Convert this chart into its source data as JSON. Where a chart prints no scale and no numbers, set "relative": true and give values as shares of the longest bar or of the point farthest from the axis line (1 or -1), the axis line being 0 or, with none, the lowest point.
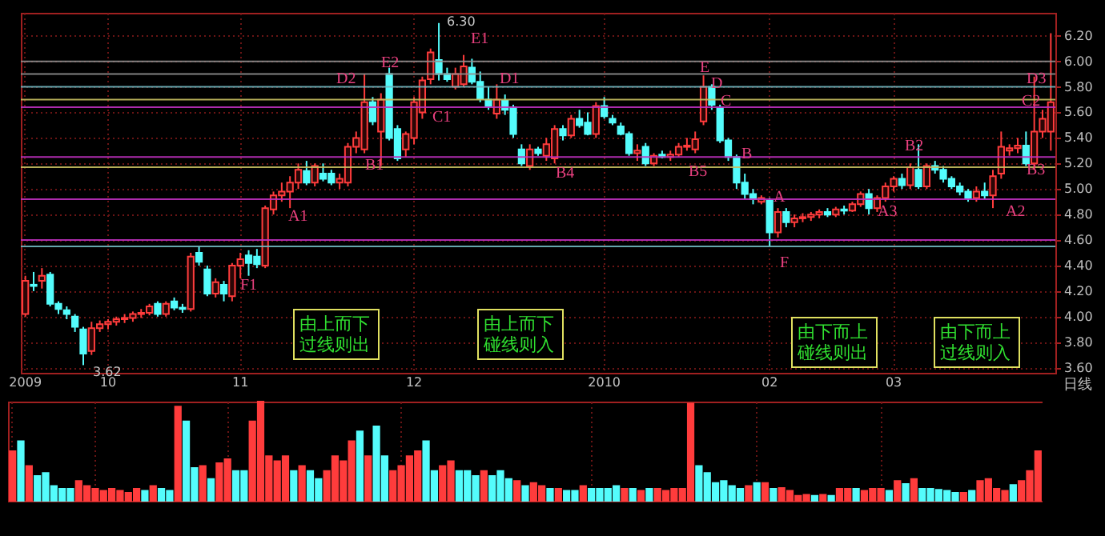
{
  "chart_data": [
    {
      "type": "candlestick",
      "categories": [
        "2009",
        null,
        null,
        null,
        null,
        null,
        null,
        null,
        null,
        null,
        "10",
        null,
        null,
        null,
        null,
        null,
        null,
        null,
        null,
        null,
        null,
        null,
        null,
        null,
        null,
        null,
        "11",
        null,
        null,
        null,
        null,
        null,
        null,
        null,
        null,
        null,
        null,
        null,
        null,
        null,
        null,
        null,
        null,
        null,
        null,
        null,
        null,
        "12",
        null,
        null,
        null,
        null,
        null,
        null,
        null,
        null,
        null,
        null,
        null,
        null,
        null,
        null,
        null,
        null,
        null,
        null,
        null,
        null,
        null,
        null,
        "2010",
        null,
        null,
        null,
        null,
        null,
        null,
        null,
        null,
        null,
        null,
        null,
        null,
        null,
        null,
        null,
        null,
        null,
        null,
        null,
        "02",
        null,
        null,
        null,
        null,
        null,
        null,
        null,
        null,
        null,
        null,
        null,
        null,
        null,
        null,
        "03",
        null,
        null,
        null,
        null,
        null,
        null,
        null,
        null,
        null,
        null,
        null,
        null,
        null,
        null,
        null,
        null,
        null,
        null,
        null
      ],
      "ohlc": [
        [
          4.02,
          4.32,
          4.0,
          4.28
        ],
        [
          4.25,
          4.35,
          4.2,
          4.24
        ],
        [
          4.28,
          4.38,
          4.22,
          4.32
        ],
        [
          4.33,
          4.35,
          4.08,
          4.1
        ],
        [
          4.1,
          4.12,
          4.02,
          4.06
        ],
        [
          4.05,
          4.08,
          3.98,
          4.02
        ],
        [
          4.0,
          4.02,
          3.88,
          3.92
        ],
        [
          3.9,
          3.92,
          3.62,
          3.71
        ],
        [
          3.73,
          3.96,
          3.7,
          3.91
        ],
        [
          3.91,
          3.97,
          3.88,
          3.94
        ],
        [
          3.94,
          3.98,
          3.9,
          3.96
        ],
        [
          3.96,
          4.0,
          3.93,
          3.98
        ],
        [
          3.98,
          4.02,
          3.95,
          3.99
        ],
        [
          3.99,
          4.04,
          3.96,
          4.02
        ],
        [
          4.02,
          4.06,
          3.99,
          4.03
        ],
        [
          4.03,
          4.1,
          4.01,
          4.08
        ],
        [
          4.1,
          4.12,
          4.0,
          4.02
        ],
        [
          4.02,
          4.12,
          4.0,
          4.1
        ],
        [
          4.12,
          4.15,
          4.05,
          4.07
        ],
        [
          4.07,
          4.1,
          4.03,
          4.06
        ],
        [
          4.06,
          4.5,
          4.04,
          4.47
        ],
        [
          4.5,
          4.55,
          4.4,
          4.43
        ],
        [
          4.37,
          4.4,
          4.16,
          4.18
        ],
        [
          4.18,
          4.3,
          4.15,
          4.27
        ],
        [
          4.25,
          4.28,
          4.12,
          4.18
        ],
        [
          4.16,
          4.42,
          4.12,
          4.4
        ],
        [
          4.4,
          4.5,
          4.3,
          4.45
        ],
        [
          4.48,
          4.52,
          4.32,
          4.42
        ],
        [
          4.47,
          4.53,
          4.38,
          4.41
        ],
        [
          4.4,
          4.87,
          4.38,
          4.85
        ],
        [
          4.84,
          4.98,
          4.8,
          4.95
        ],
        [
          4.95,
          5.05,
          4.9,
          4.98
        ],
        [
          4.98,
          5.1,
          4.85,
          5.05
        ],
        [
          5.05,
          5.2,
          5.0,
          5.15
        ],
        [
          5.14,
          5.22,
          5.03,
          5.05
        ],
        [
          5.05,
          5.2,
          5.02,
          5.18
        ],
        [
          5.12,
          5.2,
          5.06,
          5.08
        ],
        [
          5.12,
          5.15,
          5.03,
          5.05
        ],
        [
          5.05,
          5.12,
          5.0,
          5.08
        ],
        [
          5.05,
          5.36,
          5.02,
          5.33
        ],
        [
          5.33,
          5.45,
          5.28,
          5.4
        ],
        [
          5.31,
          5.9,
          5.28,
          5.68
        ],
        [
          5.68,
          5.72,
          5.5,
          5.53
        ],
        [
          5.45,
          5.75,
          5.18,
          5.7
        ],
        [
          5.9,
          5.95,
          5.38,
          5.4
        ],
        [
          5.47,
          5.5,
          5.22,
          5.24
        ],
        [
          5.31,
          5.45,
          5.25,
          5.43
        ],
        [
          5.4,
          5.72,
          5.35,
          5.68
        ],
        [
          5.6,
          5.88,
          5.55,
          5.85
        ],
        [
          5.86,
          6.1,
          5.82,
          6.07
        ],
        [
          6.01,
          6.3,
          5.85,
          5.9
        ],
        [
          5.9,
          5.95,
          5.84,
          5.86
        ],
        [
          5.8,
          5.95,
          5.78,
          5.9
        ],
        [
          5.82,
          6.05,
          5.8,
          5.96
        ],
        [
          5.95,
          6.02,
          5.82,
          5.84
        ],
        [
          5.84,
          5.92,
          5.68,
          5.71
        ],
        [
          5.7,
          5.8,
          5.62,
          5.65
        ],
        [
          5.59,
          5.82,
          5.55,
          5.7
        ],
        [
          5.69,
          5.74,
          5.58,
          5.62
        ],
        [
          5.64,
          5.66,
          5.4,
          5.43
        ],
        [
          5.31,
          5.35,
          5.18,
          5.2
        ],
        [
          5.18,
          5.35,
          5.15,
          5.31
        ],
        [
          5.31,
          5.33,
          5.26,
          5.28
        ],
        [
          5.26,
          5.4,
          5.22,
          5.35
        ],
        [
          5.24,
          5.5,
          5.2,
          5.47
        ],
        [
          5.47,
          5.5,
          5.38,
          5.42
        ],
        [
          5.42,
          5.58,
          5.4,
          5.55
        ],
        [
          5.55,
          5.62,
          5.48,
          5.5
        ],
        [
          5.52,
          5.6,
          5.42,
          5.43
        ],
        [
          5.43,
          5.68,
          5.4,
          5.65
        ],
        [
          5.65,
          5.72,
          5.55,
          5.57
        ],
        [
          5.55,
          5.58,
          5.5,
          5.52
        ],
        [
          5.49,
          5.52,
          5.42,
          5.43
        ],
        [
          5.43,
          5.45,
          5.26,
          5.28
        ],
        [
          5.28,
          5.35,
          5.22,
          5.3
        ],
        [
          5.33,
          5.36,
          5.18,
          5.2
        ],
        [
          5.2,
          5.28,
          5.18,
          5.26
        ],
        [
          5.27,
          5.3,
          5.24,
          5.25
        ],
        [
          5.25,
          5.3,
          5.22,
          5.27
        ],
        [
          5.27,
          5.36,
          5.25,
          5.33
        ],
        [
          5.33,
          5.4,
          5.3,
          5.34
        ],
        [
          5.31,
          5.45,
          5.28,
          5.39
        ],
        [
          5.53,
          5.89,
          5.5,
          5.8
        ],
        [
          5.8,
          5.82,
          5.62,
          5.66
        ],
        [
          5.64,
          5.66,
          5.36,
          5.38
        ],
        [
          5.38,
          5.4,
          5.22,
          5.25
        ],
        [
          5.25,
          5.27,
          5.0,
          5.05
        ],
        [
          5.05,
          5.12,
          4.92,
          4.96
        ],
        [
          4.96,
          5.0,
          4.88,
          4.92
        ],
        [
          4.9,
          4.95,
          4.88,
          4.93
        ],
        [
          4.91,
          4.93,
          4.55,
          4.66
        ],
        [
          4.66,
          4.85,
          4.62,
          4.82
        ],
        [
          4.82,
          4.85,
          4.7,
          4.74
        ],
        [
          4.74,
          4.8,
          4.7,
          4.77
        ],
        [
          4.77,
          4.81,
          4.74,
          4.78
        ],
        [
          4.78,
          4.82,
          4.75,
          4.8
        ],
        [
          4.8,
          4.84,
          4.77,
          4.82
        ],
        [
          4.82,
          4.85,
          4.78,
          4.8
        ],
        [
          4.8,
          4.86,
          4.78,
          4.84
        ],
        [
          4.84,
          4.87,
          4.8,
          4.83
        ],
        [
          4.83,
          4.9,
          4.82,
          4.88
        ],
        [
          4.88,
          4.98,
          4.86,
          4.96
        ],
        [
          4.96,
          5.0,
          4.8,
          4.85
        ],
        [
          4.85,
          4.95,
          4.82,
          4.93
        ],
        [
          4.93,
          5.05,
          4.9,
          5.02
        ],
        [
          5.02,
          5.1,
          4.98,
          5.08
        ],
        [
          5.08,
          5.12,
          5.0,
          5.03
        ],
        [
          5.03,
          5.2,
          5.0,
          5.17
        ],
        [
          5.15,
          5.35,
          5.0,
          5.02
        ],
        [
          5.02,
          5.2,
          5.0,
          5.18
        ],
        [
          5.18,
          5.22,
          5.12,
          5.15
        ],
        [
          5.15,
          5.18,
          5.05,
          5.08
        ],
        [
          5.08,
          5.1,
          5.0,
          5.02
        ],
        [
          5.02,
          5.05,
          4.95,
          4.98
        ],
        [
          4.98,
          5.0,
          4.9,
          4.93
        ],
        [
          4.93,
          5.02,
          4.9,
          4.98
        ],
        [
          4.98,
          5.05,
          4.92,
          4.95
        ],
        [
          4.95,
          5.15,
          4.85,
          5.1
        ],
        [
          5.12,
          5.45,
          5.08,
          5.33
        ],
        [
          5.3,
          5.35,
          5.26,
          5.32
        ],
        [
          5.32,
          5.4,
          5.28,
          5.34
        ],
        [
          5.34,
          5.45,
          5.18,
          5.2
        ],
        [
          5.2,
          5.88,
          5.15,
          5.45
        ],
        [
          5.45,
          5.62,
          5.4,
          5.55
        ],
        [
          5.45,
          6.22,
          5.3,
          5.68
        ]
      ],
      "colors": [
        "#ff3c3c",
        "#54fcfc",
        "#ff3c3c",
        "#54fcfc",
        "#54fcfc",
        "#54fcfc",
        "#54fcfc",
        "#54fcfc",
        "#ff3c3c",
        "#ff3c3c",
        "#ff3c3c",
        "#ff3c3c",
        "#ff3c3c",
        "#ff3c3c",
        "#ff3c3c",
        "#ff3c3c",
        "#54fcfc",
        "#ff3c3c",
        "#54fcfc",
        "#54fcfc",
        "#ff3c3c",
        "#54fcfc",
        "#54fcfc",
        "#ff3c3c",
        "#54fcfc",
        "#ff3c3c",
        "#ff3c3c",
        "#54fcfc",
        "#54fcfc",
        "#ff3c3c",
        "#ff3c3c",
        "#ff3c3c",
        "#ff3c3c",
        "#ff3c3c",
        "#54fcfc",
        "#ff3c3c",
        "#54fcfc",
        "#54fcfc",
        "#ff3c3c",
        "#ff3c3c",
        "#ff3c3c",
        "#ff3c3c",
        "#54fcfc",
        "#ff3c3c",
        "#54fcfc",
        "#54fcfc",
        "#ff3c3c",
        "#ff3c3c",
        "#ff3c3c",
        "#ff3c3c",
        "#54fcfc",
        "#54fcfc",
        "#ff3c3c",
        "#ff3c3c",
        "#54fcfc",
        "#54fcfc",
        "#54fcfc",
        "#ff3c3c",
        "#54fcfc",
        "#54fcfc",
        "#54fcfc",
        "#ff3c3c",
        "#54fcfc",
        "#ff3c3c",
        "#ff3c3c",
        "#54fcfc",
        "#ff3c3c",
        "#54fcfc",
        "#54fcfc",
        "#ff3c3c",
        "#54fcfc",
        "#54fcfc",
        "#54fcfc",
        "#54fcfc",
        "#ff3c3c",
        "#54fcfc",
        "#ff3c3c",
        "#54fcfc",
        "#ff3c3c",
        "#ff3c3c",
        "#ff3c3c",
        "#ff3c3c",
        "#ff3c3c",
        "#54fcfc",
        "#54fcfc",
        "#54fcfc",
        "#54fcfc",
        "#54fcfc",
        "#54fcfc",
        "#ff3c3c",
        "#54fcfc",
        "#ff3c3c",
        "#54fcfc",
        "#ff3c3c",
        "#ff3c3c",
        "#ff3c3c",
        "#ff3c3c",
        "#54fcfc",
        "#ff3c3c",
        "#54fcfc",
        "#ff3c3c",
        "#ff3c3c",
        "#54fcfc",
        "#ff3c3c",
        "#ff3c3c",
        "#ff3c3c",
        "#54fcfc",
        "#ff3c3c",
        "#54fcfc",
        "#ff3c3c",
        "#54fcfc",
        "#54fcfc",
        "#54fcfc",
        "#54fcfc",
        "#54fcfc",
        "#ff3c3c",
        "#54fcfc",
        "#ff3c3c",
        "#ff3c3c",
        "#ff3c3c",
        "#ff3c3c",
        "#54fcfc",
        "#ff3c3c",
        "#ff3c3c",
        "#ff3c3c"
      ],
      "ylim": [
        3.56,
        6.38
      ],
      "yticks": [
        {
          "value": 3.6,
          "label": "3.60"
        },
        {
          "value": 3.8,
          "label": "3.80"
        },
        {
          "value": 4.0,
          "label": "4.00"
        },
        {
          "value": 4.2,
          "label": "4.20"
        },
        {
          "value": 4.4,
          "label": "4.40"
        },
        {
          "value": 4.6,
          "label": "4.60"
        },
        {
          "value": 4.8,
          "label": "4.80"
        },
        {
          "value": 5.0,
          "label": "5.00"
        },
        {
          "value": 5.2,
          "label": "5.20"
        },
        {
          "value": 5.4,
          "label": "5.40"
        },
        {
          "value": 5.6,
          "label": "5.60"
        },
        {
          "value": 5.8,
          "label": "5.80"
        },
        {
          "value": 6.0,
          "label": "6.00"
        },
        {
          "value": 6.2,
          "label": "6.20"
        }
      ],
      "grid": true,
      "ref_lines": [
        {
          "axis": "y",
          "value": 6.0,
          "color": "#909090"
        },
        {
          "axis": "y",
          "value": 5.9,
          "color": "#909090"
        },
        {
          "axis": "y",
          "value": 5.8,
          "color": "#70b8c0"
        },
        {
          "axis": "y",
          "value": 5.7,
          "color": "#c8c060"
        },
        {
          "axis": "y",
          "value": 5.64,
          "color": "#c030c0"
        },
        {
          "axis": "y",
          "value": 5.25,
          "color": "#c030c0"
        },
        {
          "axis": "y",
          "value": 5.17,
          "color": "#c8c060"
        },
        {
          "axis": "y",
          "value": 4.92,
          "color": "#c030c0"
        },
        {
          "axis": "y",
          "value": 4.6,
          "color": "#c030c0"
        },
        {
          "axis": "y",
          "value": 4.55,
          "color": "#70b8c0"
        }
      ],
      "annotations": [
        "F1",
        "A1",
        "B1",
        "C1",
        "D2",
        "E2",
        "E1",
        "D1",
        "B4",
        "B5",
        "E",
        "D",
        "C",
        "B",
        "A",
        "F",
        "A3",
        "B2",
        "A2",
        "C2",
        "D3",
        "B3",
        "6.30",
        "3.62",
        "由上而下过线则出",
        "由上而下碰线则入",
        "由下而上碰线则出",
        "由下而上过线则入",
        "日线"
      ]
    },
    {
      "type": "bar",
      "relative": true,
      "grid": "x",
      "categories": [
        null,
        null,
        null,
        null,
        null,
        null,
        null,
        null,
        null,
        null,
        null,
        null,
        null,
        null,
        null,
        null,
        null,
        null,
        null,
        null,
        null,
        null,
        null,
        null,
        null,
        null,
        null,
        null,
        null,
        null,
        null,
        null,
        null,
        null,
        null,
        null,
        null,
        null,
        null,
        null,
        null,
        null,
        null,
        null,
        null,
        null,
        null,
        null,
        null,
        null,
        null,
        null,
        null,
        null,
        null,
        null,
        null,
        null,
        null,
        null,
        null,
        null,
        null,
        null,
        null,
        null,
        null,
        null,
        null,
        null,
        null,
        null,
        null,
        null,
        null,
        null,
        null,
        null,
        null,
        null,
        null,
        null,
        null,
        null,
        null,
        null,
        null,
        null,
        null,
        null,
        null,
        null,
        null,
        null,
        null,
        null,
        null,
        null,
        null,
        null,
        null,
        null,
        null,
        null,
        null,
        null,
        null,
        null,
        null,
        null,
        null,
        null,
        null,
        null,
        null,
        null,
        null,
        null,
        null,
        null,
        null,
        null,
        null,
        null,
        null
      ],
      "colors": [
        "#ff3c3c",
        "#54fcfc",
        "#ff3c3c",
        "#54fcfc",
        "#54fcfc",
        "#54fcfc",
        "#54fcfc",
        "#54fcfc",
        "#ff3c3c",
        "#ff3c3c",
        "#ff3c3c",
        "#ff3c3c",
        "#ff3c3c",
        "#ff3c3c",
        "#ff3c3c",
        "#ff3c3c",
        "#54fcfc",
        "#ff3c3c",
        "#54fcfc",
        "#54fcfc",
        "#ff3c3c",
        "#54fcfc",
        "#54fcfc",
        "#ff3c3c",
        "#54fcfc",
        "#ff3c3c",
        "#ff3c3c",
        "#54fcfc",
        "#54fcfc",
        "#ff3c3c",
        "#ff3c3c",
        "#ff3c3c",
        "#ff3c3c",
        "#ff3c3c",
        "#54fcfc",
        "#ff3c3c",
        "#54fcfc",
        "#54fcfc",
        "#ff3c3c",
        "#ff3c3c",
        "#ff3c3c",
        "#ff3c3c",
        "#54fcfc",
        "#ff3c3c",
        "#54fcfc",
        "#54fcfc",
        "#ff3c3c",
        "#ff3c3c",
        "#ff3c3c",
        "#ff3c3c",
        "#54fcfc",
        "#54fcfc",
        "#ff3c3c",
        "#ff3c3c",
        "#54fcfc",
        "#54fcfc",
        "#54fcfc",
        "#ff3c3c",
        "#54fcfc",
        "#54fcfc",
        "#54fcfc",
        "#ff3c3c",
        "#54fcfc",
        "#ff3c3c",
        "#ff3c3c",
        "#54fcfc",
        "#ff3c3c",
        "#54fcfc",
        "#54fcfc",
        "#ff3c3c",
        "#54fcfc",
        "#54fcfc",
        "#54fcfc",
        "#54fcfc",
        "#ff3c3c",
        "#54fcfc",
        "#ff3c3c",
        "#54fcfc",
        "#ff3c3c",
        "#ff3c3c",
        "#ff3c3c",
        "#ff3c3c",
        "#ff3c3c",
        "#54fcfc",
        "#54fcfc",
        "#54fcfc",
        "#54fcfc",
        "#54fcfc",
        "#54fcfc",
        "#ff3c3c",
        "#54fcfc",
        "#ff3c3c",
        "#54fcfc",
        "#ff3c3c",
        "#ff3c3c",
        "#ff3c3c",
        "#ff3c3c",
        "#54fcfc",
        "#ff3c3c",
        "#54fcfc",
        "#ff3c3c",
        "#ff3c3c",
        "#54fcfc",
        "#ff3c3c",
        "#ff3c3c",
        "#ff3c3c",
        "#54fcfc",
        "#ff3c3c",
        "#54fcfc",
        "#ff3c3c",
        "#54fcfc",
        "#54fcfc",
        "#54fcfc",
        "#54fcfc",
        "#54fcfc",
        "#ff3c3c",
        "#54fcfc",
        "#ff3c3c",
        "#ff3c3c",
        "#ff3c3c",
        "#ff3c3c",
        "#54fcfc",
        "#ff3c3c",
        "#ff3c3c",
        "#ff3c3c"
      ],
      "values": [
        0.5,
        0.6,
        0.35,
        0.25,
        0.28,
        0.15,
        0.12,
        0.12,
        0.2,
        0.15,
        0.12,
        0.1,
        0.12,
        0.1,
        0.08,
        0.12,
        0.1,
        0.15,
        0.12,
        0.1,
        0.95,
        0.8,
        0.33,
        0.35,
        0.22,
        0.38,
        0.42,
        0.3,
        0.3,
        0.8,
        1.0,
        0.45,
        0.4,
        0.45,
        0.3,
        0.35,
        0.3,
        0.22,
        0.3,
        0.45,
        0.4,
        0.6,
        0.7,
        0.45,
        0.75,
        0.45,
        0.3,
        0.35,
        0.45,
        0.5,
        0.6,
        0.3,
        0.35,
        0.4,
        0.3,
        0.3,
        0.25,
        0.3,
        0.25,
        0.3,
        0.22,
        0.2,
        0.15,
        0.18,
        0.15,
        0.12,
        0.12,
        0.1,
        0.1,
        0.15,
        0.12,
        0.12,
        0.12,
        0.15,
        0.12,
        0.12,
        0.1,
        0.12,
        0.12,
        0.1,
        0.12,
        0.12,
        0.98,
        0.35,
        0.28,
        0.18,
        0.2,
        0.15,
        0.12,
        0.15,
        0.18,
        0.18,
        0.12,
        0.13,
        0.1,
        0.05,
        0.06,
        0.05,
        0.06,
        0.05,
        0.12,
        0.12,
        0.12,
        0.1,
        0.12,
        0.12,
        0.1,
        0.2,
        0.17,
        0.22,
        0.12,
        0.12,
        0.11,
        0.1,
        0.08,
        0.08,
        0.1,
        0.2,
        0.22,
        0.12,
        0.1,
        0.16,
        0.2,
        0.3,
        0.5
      ]
    }
  ]
}
